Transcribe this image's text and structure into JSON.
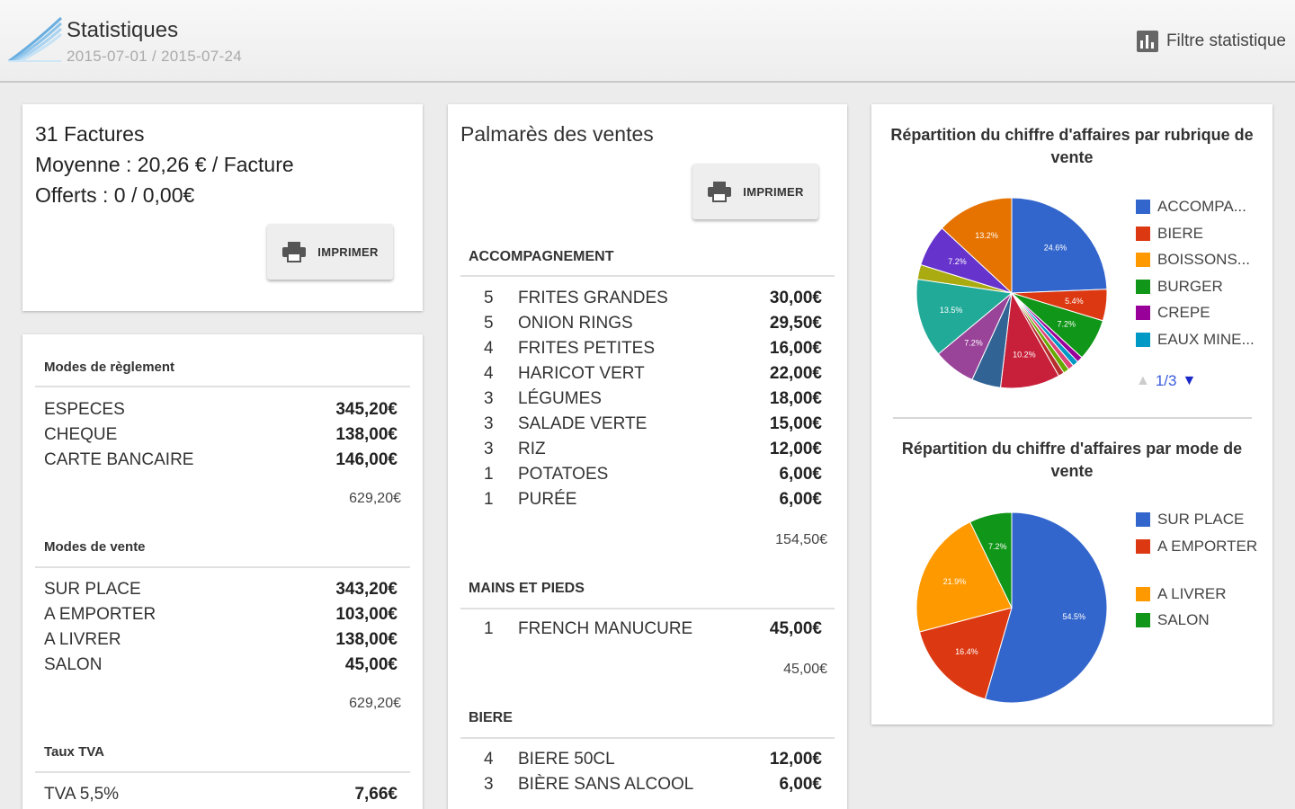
{
  "header": {
    "title": "Statistiques",
    "date_range": "2015-07-01 / 2015-07-24",
    "filter_label": "Filtre statistique"
  },
  "summary": {
    "invoices": "31 Factures",
    "average": "Moyenne : 20,26  € / Facture",
    "offered": "Offerts : 0 / 0,00€",
    "print_label": "IMPRIMER"
  },
  "modes": {
    "payment": {
      "title": "Modes de règlement",
      "rows": [
        {
          "label": "ESPECES",
          "amount": "345,20€"
        },
        {
          "label": "CHEQUE",
          "amount": "138,00€"
        },
        {
          "label": "CARTE BANCAIRE",
          "amount": "146,00€"
        }
      ],
      "total": "629,20€"
    },
    "sale": {
      "title": "Modes de vente",
      "rows": [
        {
          "label": "SUR PLACE",
          "amount": "343,20€"
        },
        {
          "label": "A EMPORTER",
          "amount": "103,00€"
        },
        {
          "label": "A LIVRER",
          "amount": "138,00€"
        },
        {
          "label": "SALON",
          "amount": "45,00€"
        }
      ],
      "total": "629,20€"
    },
    "vat": {
      "title": "Taux TVA",
      "rows": [
        {
          "label": "TVA 5,5%",
          "amount": "7,66€"
        }
      ]
    }
  },
  "ranking": {
    "title": "Palmarès des ventes",
    "print_label": "IMPRIMER",
    "sections": [
      {
        "name": "ACCOMPAGNEMENT",
        "items": [
          {
            "qty": "5",
            "name": "FRITES GRANDES",
            "amount": "30,00€"
          },
          {
            "qty": "5",
            "name": "ONION RINGS",
            "amount": "29,50€"
          },
          {
            "qty": "4",
            "name": "FRITES PETITES",
            "amount": "16,00€"
          },
          {
            "qty": "4",
            "name": "HARICOT VERT",
            "amount": "22,00€"
          },
          {
            "qty": "3",
            "name": "LÉGUMES",
            "amount": "18,00€"
          },
          {
            "qty": "3",
            "name": "SALADE VERTE",
            "amount": "15,00€"
          },
          {
            "qty": "3",
            "name": "RIZ",
            "amount": "12,00€"
          },
          {
            "qty": "1",
            "name": "POTATOES",
            "amount": "6,00€"
          },
          {
            "qty": "1",
            "name": "PURÉE",
            "amount": "6,00€"
          }
        ],
        "total": "154,50€"
      },
      {
        "name": "MAINS ET PIEDS",
        "items": [
          {
            "qty": "1",
            "name": "FRENCH MANUCURE",
            "amount": "45,00€"
          }
        ],
        "total": "45,00€"
      },
      {
        "name": "BIERE",
        "items": [
          {
            "qty": "4",
            "name": "BIERE 50CL",
            "amount": "12,00€"
          },
          {
            "qty": "3",
            "name": "BIÈRE SANS ALCOOL",
            "amount": "6,00€"
          }
        ]
      }
    ]
  },
  "chart_data": [
    {
      "type": "pie",
      "title": "Répartition du chiffre d'affaires par rubrique de vente",
      "legend": [
        "ACCOMPA...",
        "BIERE",
        "BOISSONS...",
        "BURGER",
        "CREPE",
        "EAUX MINE..."
      ],
      "legend_position": "right",
      "pager": "1/3",
      "slices": [
        {
          "label": "24.6%",
          "value": 24.6,
          "color": "#3366cc"
        },
        {
          "label": "5.4%",
          "value": 5.4,
          "color": "#dc3912"
        },
        {
          "label": "7.2%",
          "value": 7.2,
          "color": "#109618"
        },
        {
          "label": "",
          "value": 1.0,
          "color": "#990099"
        },
        {
          "label": "",
          "value": 1.0,
          "color": "#0099c6"
        },
        {
          "label": "",
          "value": 1.0,
          "color": "#dd4477"
        },
        {
          "label": "",
          "value": 1.0,
          "color": "#66aa00"
        },
        {
          "label": "",
          "value": 1.0,
          "color": "#b82e2e"
        },
        {
          "label": "10.2%",
          "value": 10.2,
          "color": "#c8203a"
        },
        {
          "label": "",
          "value": 5.0,
          "color": "#316395"
        },
        {
          "label": "7.2%",
          "value": 7.2,
          "color": "#994499"
        },
        {
          "label": "13.5%",
          "value": 13.5,
          "color": "#22aa99"
        },
        {
          "label": "",
          "value": 2.5,
          "color": "#aaaa11"
        },
        {
          "label": "7.2%",
          "value": 7.2,
          "color": "#6633cc"
        },
        {
          "label": "13.2%",
          "value": 13.2,
          "color": "#e67300"
        }
      ]
    },
    {
      "type": "pie",
      "title": "Répartition du chiffre d'affaires par mode de vente",
      "legend": [
        "SUR PLACE",
        "A EMPORTER",
        "A LIVRER",
        "SALON"
      ],
      "legend_position": "right",
      "slices": [
        {
          "label": "54.5%",
          "value": 54.5,
          "color": "#3366cc"
        },
        {
          "label": "16.4%",
          "value": 16.4,
          "color": "#dc3912"
        },
        {
          "label": "21.9%",
          "value": 21.9,
          "color": "#ff9900"
        },
        {
          "label": "7.2%",
          "value": 7.2,
          "color": "#109618"
        }
      ]
    }
  ],
  "legend_colors": [
    "#3366cc",
    "#dc3912",
    "#ff9900",
    "#109618",
    "#990099",
    "#0099c6"
  ]
}
